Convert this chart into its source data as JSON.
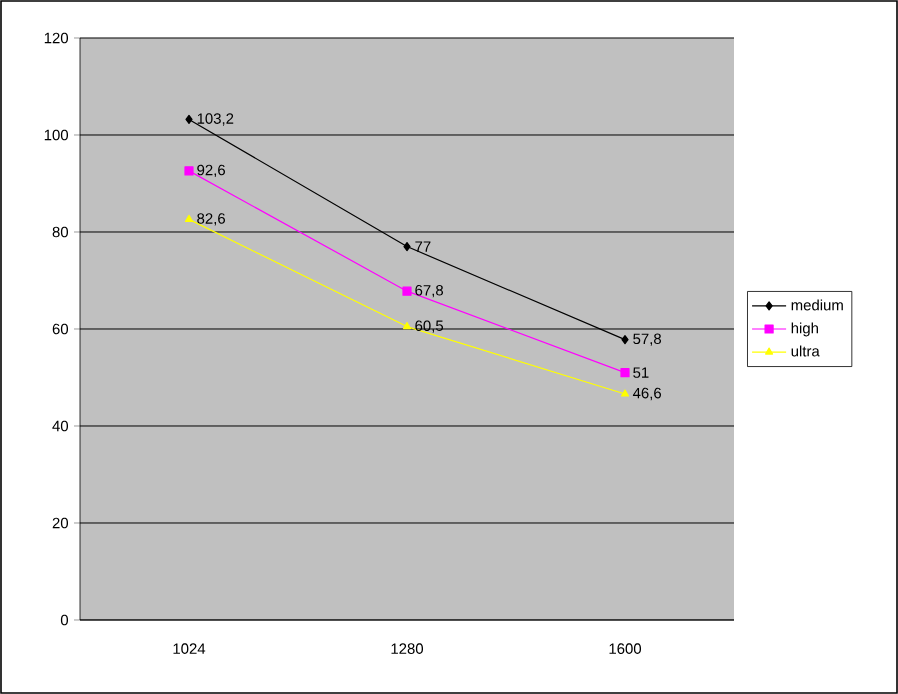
{
  "chart_data": {
    "type": "line",
    "categories": [
      "1024",
      "1280",
      "1600"
    ],
    "series": [
      {
        "name": "medium",
        "color": "#000000",
        "marker": "diamond",
        "values": [
          103.2,
          77,
          57.8
        ],
        "value_labels": [
          "103,2",
          "77",
          "57,8"
        ]
      },
      {
        "name": "high",
        "color": "#ff00ff",
        "marker": "square",
        "values": [
          92.6,
          67.8,
          51
        ],
        "value_labels": [
          "92,6",
          "67,8",
          "51"
        ]
      },
      {
        "name": "ultra",
        "color": "#ffff00",
        "marker": "triangle",
        "values": [
          82.6,
          60.5,
          46.6
        ],
        "value_labels": [
          "82,6",
          "60,5",
          "46,6"
        ]
      }
    ],
    "ylim": [
      0,
      120
    ],
    "yticks": [
      0,
      20,
      40,
      60,
      80,
      100,
      120
    ],
    "grid": "y",
    "legend": "right",
    "line_style": "solid"
  }
}
